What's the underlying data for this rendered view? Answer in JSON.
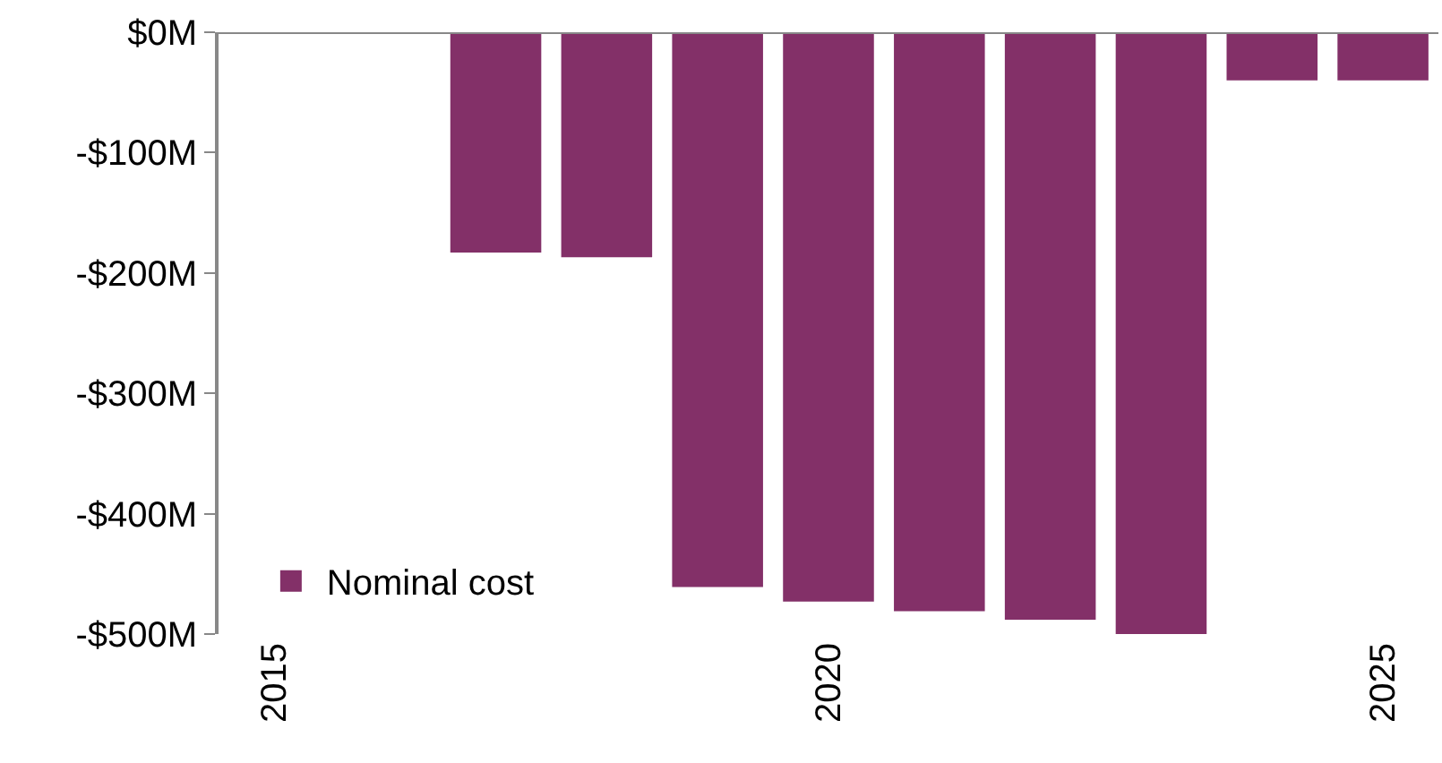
{
  "chart_data": {
    "type": "bar",
    "categories": [
      "2015",
      null,
      null,
      null,
      null,
      "2020",
      null,
      null,
      null,
      null,
      "2025"
    ],
    "series": [
      {
        "name": "Nominal cost",
        "color": "#833068",
        "values": [
          null,
          null,
          -183,
          -187,
          -461,
          -473,
          -481,
          -488,
          -500,
          -40,
          -40
        ]
      }
    ],
    "ylim": [
      -500,
      0
    ],
    "yticks": [
      {
        "value": -500,
        "label": "-$500M"
      },
      {
        "value": -400,
        "label": "-$400M"
      },
      {
        "value": -300,
        "label": "-$300M"
      },
      {
        "value": -200,
        "label": "-$200M"
      },
      {
        "value": -100,
        "label": "-$100M"
      },
      {
        "value": 0,
        "label": "$0M"
      }
    ],
    "grid": false,
    "legend": "bottom left"
  }
}
